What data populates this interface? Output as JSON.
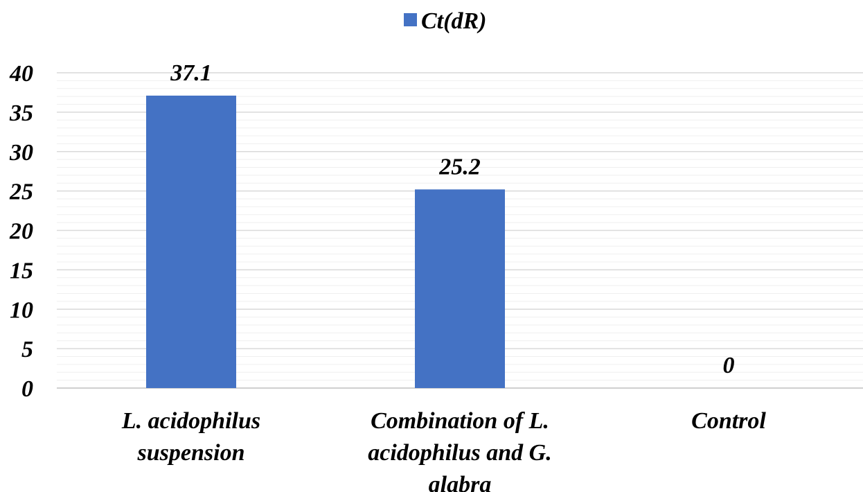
{
  "chart_data": {
    "type": "bar",
    "categories": [
      [
        "L. acidophilus",
        "suspension"
      ],
      [
        "Combination of L.",
        "acidophilus and G.",
        "glabra"
      ],
      [
        "Control"
      ]
    ],
    "series": [
      {
        "name": "Ct(dR)",
        "values": [
          37.1,
          25.2,
          0
        ],
        "labels": [
          "37.1",
          "25.2",
          "0"
        ],
        "color": "#4472C4"
      }
    ],
    "title": "",
    "xlabel": "",
    "ylabel": "",
    "ylim": [
      0,
      40
    ],
    "yticks": [
      "0",
      "5",
      "10",
      "15",
      "20",
      "25",
      "30",
      "35",
      "40"
    ],
    "grid": "major and minor horizontal",
    "legend": "top-center",
    "gridColor": "#D9D9D9",
    "minorGridColor": "#EFEFEF"
  }
}
